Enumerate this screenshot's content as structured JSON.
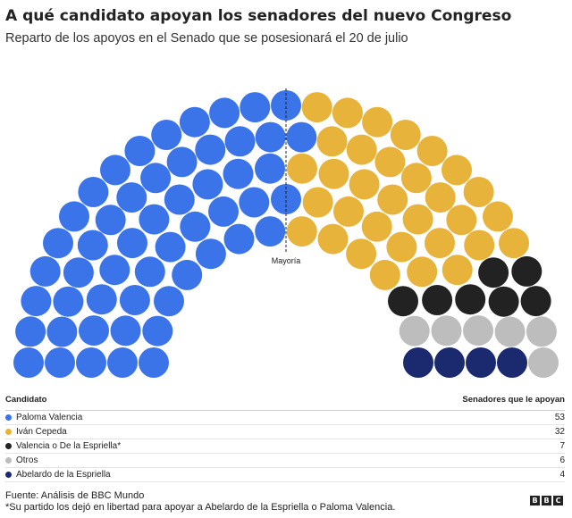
{
  "title": "A qué candidato apoyan los senadores del nuevo Congreso",
  "subtitle": "Reparto de los apoyos en el Senado que se posesionará el 20 de julio",
  "majority_label": "Mayoría",
  "legend": {
    "candidate_header": "Candidato",
    "count_header": "Senadores que le apoyan"
  },
  "chart_data": {
    "type": "parliament",
    "total_seats": 102,
    "series": [
      {
        "name": "Paloma Valencia",
        "value": 53,
        "color": "#3b73e8"
      },
      {
        "name": "Iván Cepeda",
        "value": 32,
        "color": "#e8b33b"
      },
      {
        "name": "Valencia o De la Espriella*",
        "value": 7,
        "color": "#222222"
      },
      {
        "name": "Otros",
        "value": 6,
        "color": "#bdbdbd"
      },
      {
        "name": "Abelardo de la Espriella",
        "value": 4,
        "color": "#1b2a6e"
      }
    ]
  },
  "footer": {
    "source": "Fuente: Análisis de BBC Mundo",
    "note": "*Su partido los dejó en libertad para apoyar a Abelardo de la Espriella o Paloma Valencia."
  },
  "logo": [
    "B",
    "B",
    "C"
  ]
}
